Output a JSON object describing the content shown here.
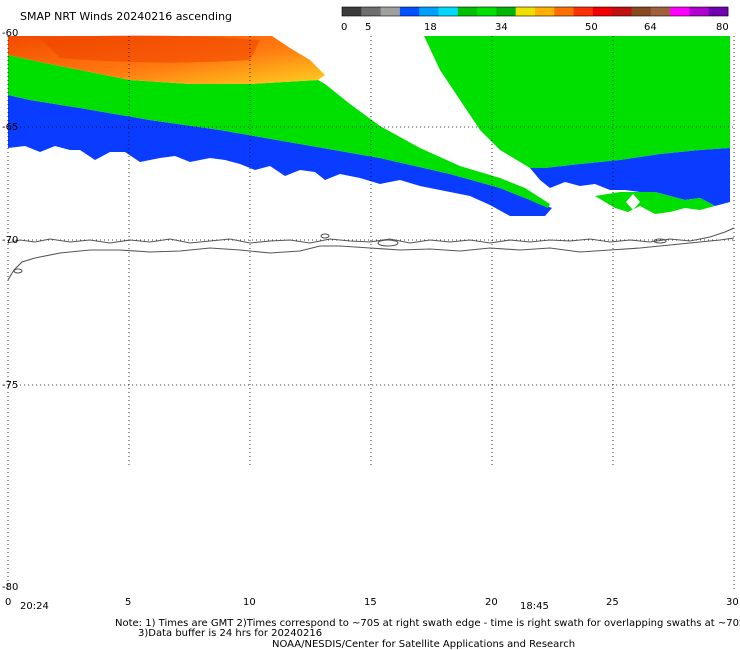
{
  "title": "SMAP NRT Winds 20240216 ascending",
  "colorbar": {
    "tick_labels": [
      "0",
      "5",
      "18",
      "34",
      "50",
      "64",
      "80"
    ],
    "colors": [
      "#3c3c3c",
      "#6e6e6e",
      "#a0a0a0",
      "#0050ff",
      "#00a0ff",
      "#00d8ff",
      "#00c000",
      "#00e000",
      "#00b400",
      "#f0e000",
      "#ffb000",
      "#ff7000",
      "#ff3000",
      "#f00000",
      "#c01010",
      "#8a4a20",
      "#a06040",
      "#ff00ff",
      "#b000d0",
      "#7000b0"
    ]
  },
  "axes": {
    "y_tick_labels": [
      "-60",
      "-65",
      "-70",
      "-75",
      "-80"
    ],
    "x_tick_labels": [
      "0",
      "5",
      "10",
      "15",
      "20",
      "25",
      "30"
    ],
    "swath_time_labels": [
      "20:24",
      "18:45"
    ]
  },
  "wind_speed_colors": {
    "low_blue": "#0a3cff",
    "mid_green": "#00e000",
    "yellow": "#ffd000",
    "orange": "#ff8000",
    "red_orange": "#f05000"
  },
  "notes": {
    "line1": "Note: 1) Times are GMT 2)Times correspond to ~70S at right swath edge - time is right swath for overlapping swaths at ~70S",
    "line2": "3)Data buffer is 24 hrs for 20240216",
    "line3": "NOAA/NESDIS/Center for Satellite Applications and Research"
  }
}
